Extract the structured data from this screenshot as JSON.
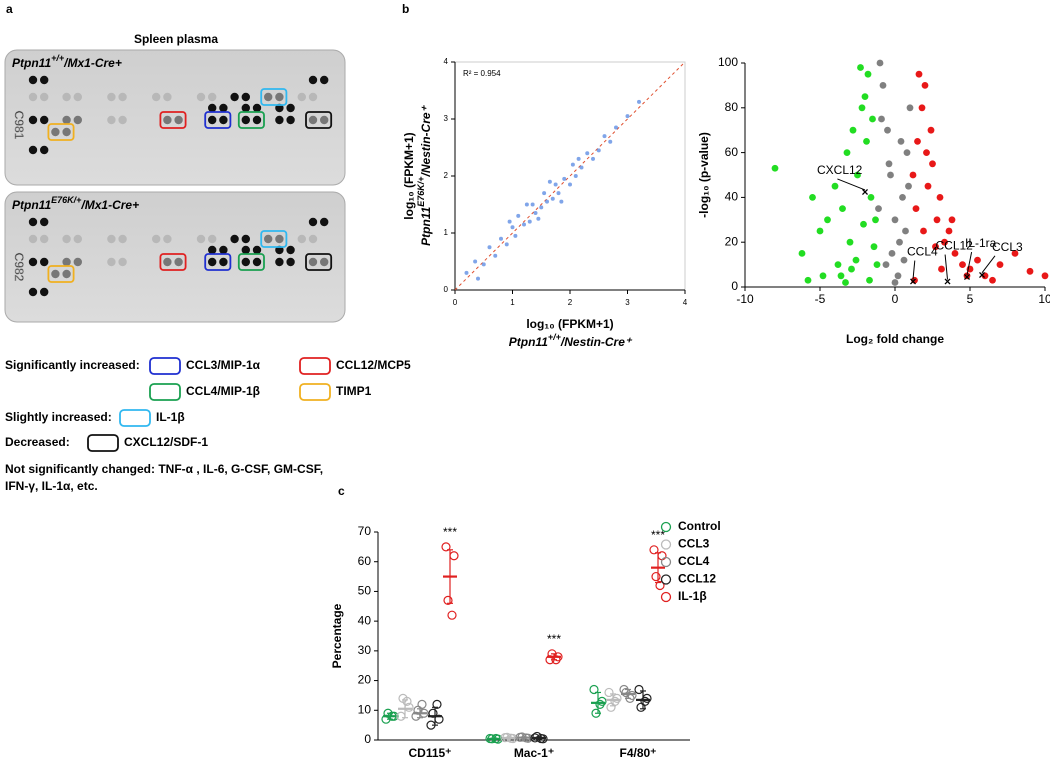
{
  "panel_a": {
    "label": "a",
    "title": "Spleen plasma",
    "membranes": [
      {
        "gene": "Ptpn11",
        "genotype": "+/+",
        "suffix": "/Mx1-Cre+",
        "code": "C981"
      },
      {
        "gene": "Ptpn11",
        "genotype": "E76K/+",
        "suffix": "/Mx1-Cre+",
        "code": "C982"
      }
    ],
    "legend": [
      {
        "heading": "Significantly increased:",
        "items": [
          {
            "label": "CCL3/MIP-1α",
            "color": "#1f2fd0"
          },
          {
            "label": "CCL12/MCP5",
            "color": "#e02020"
          },
          {
            "label": "CCL4/MIP-1β",
            "color": "#1aa050"
          },
          {
            "label": "TIMP1",
            "color": "#f0b020"
          }
        ]
      },
      {
        "heading": "Slightly increased:",
        "items": [
          {
            "label": "IL-1β",
            "color": "#30b8f0"
          }
        ]
      },
      {
        "heading": "Decreased:",
        "items": [
          {
            "label": "CXCL12/SDF-1",
            "color": "#111111"
          }
        ]
      }
    ],
    "note": [
      "Not significantly changed: TNF-α , IL-6, G-CSF, GM-CSF,",
      "IFN-γ, IL-1α, etc."
    ]
  },
  "panel_b_label": "b",
  "panel_c_label": "c",
  "chart_data": [
    {
      "type": "scatter",
      "color": "#4a7fe0",
      "xlabel": {
        "text": "log₁₀ (FPKM+1)",
        "gene": "Ptpn11",
        "genotype": "+/+",
        "suffix": "/Nestin-Cre⁺"
      },
      "ylabel": {
        "text": "log₁₀ (FPKM+1)",
        "gene": "Ptpn11",
        "genotype": "E76K/+",
        "suffix": "/Nestin-Cre⁺"
      },
      "annotation": "R² = 0.954",
      "xlim": [
        0,
        4
      ],
      "xticks": [
        0,
        1,
        2,
        3,
        4
      ],
      "ylim": [
        0,
        4
      ],
      "yticks": [
        0,
        1,
        2,
        3,
        4
      ],
      "x": [
        0.2,
        0.35,
        0.5,
        0.6,
        0.7,
        0.8,
        0.9,
        1.0,
        1.05,
        1.1,
        1.2,
        1.3,
        1.35,
        1.4,
        1.5,
        1.55,
        1.6,
        1.7,
        1.75,
        1.8,
        1.9,
        2.0,
        2.05,
        2.1,
        2.2,
        2.3,
        2.4,
        2.5,
        2.6,
        2.7,
        2.8,
        3.0,
        3.2,
        1.45,
        1.65,
        1.25,
        1.85,
        2.15,
        0.95,
        0.4
      ],
      "values": [
        0.3,
        0.5,
        0.45,
        0.75,
        0.6,
        0.9,
        0.8,
        1.1,
        0.95,
        1.3,
        1.15,
        1.2,
        1.5,
        1.35,
        1.45,
        1.7,
        1.55,
        1.6,
        1.85,
        1.7,
        1.95,
        1.85,
        2.2,
        2.0,
        2.15,
        2.4,
        2.3,
        2.45,
        2.7,
        2.6,
        2.85,
        3.05,
        3.3,
        1.25,
        1.9,
        1.5,
        1.55,
        2.3,
        1.2,
        0.2
      ]
    },
    {
      "type": "scatter",
      "xlabel": "Log₂ fold change",
      "ylabel": "-log₁₀ (p-value)",
      "xlim": [
        -10,
        10
      ],
      "xticks": [
        -10,
        -5,
        0,
        5,
        10
      ],
      "ylim": [
        0,
        100
      ],
      "yticks": [
        0,
        20,
        40,
        60,
        80,
        100
      ],
      "series": [
        {
          "color": "#22dd22",
          "x": [
            -8,
            -6.2,
            -5.5,
            -5,
            -4.5,
            -4,
            -3.8,
            -3.5,
            -3.2,
            -3,
            -2.8,
            -2.5,
            -2.3,
            -2,
            -1.8,
            -1.6,
            -1.5,
            -1.3,
            -2.2,
            -1.9,
            -3.6,
            -4.8,
            -2.6,
            -1.4,
            -2.9,
            -1.7,
            -3.3,
            -2.1,
            -1.2,
            -5.8
          ],
          "values": [
            53,
            15,
            40,
            25,
            30,
            45,
            10,
            35,
            60,
            20,
            70,
            50,
            98,
            85,
            95,
            40,
            75,
            30,
            80,
            65,
            5,
            5,
            12,
            18,
            8,
            3,
            2,
            28,
            10,
            3
          ]
        },
        {
          "color": "#808080",
          "x": [
            -1,
            -0.8,
            -0.5,
            -0.3,
            0,
            0.3,
            0.5,
            0.8,
            1,
            -0.6,
            0.2,
            -0.2,
            0.7,
            -1.1,
            0.9,
            -0.4,
            0.4,
            0,
            -0.9,
            0.6
          ],
          "values": [
            100,
            90,
            70,
            50,
            30,
            20,
            40,
            60,
            80,
            10,
            5,
            15,
            25,
            35,
            45,
            55,
            65,
            2,
            75,
            12
          ]
        },
        {
          "color": "#e81818",
          "x": [
            1.2,
            1.5,
            1.8,
            2,
            2.2,
            2.5,
            2.8,
            3,
            3.3,
            3.6,
            4,
            4.5,
            5,
            5.5,
            6,
            7,
            8,
            9,
            10,
            1.4,
            2.4,
            3.8,
            1.6,
            2.1,
            4.8,
            6.5,
            1.3,
            2.7,
            3.1,
            1.9
          ],
          "values": [
            50,
            65,
            80,
            90,
            45,
            55,
            30,
            40,
            20,
            25,
            15,
            10,
            8,
            12,
            5,
            10,
            15,
            7,
            5,
            35,
            70,
            30,
            95,
            60,
            5,
            3,
            3,
            18,
            8,
            25
          ]
        }
      ],
      "annotations": [
        {
          "label": "CXCL12",
          "x": -2,
          "y": 42
        },
        {
          "label": "CCL4",
          "x": 1.2,
          "y": 2
        },
        {
          "label": "CCL12",
          "x": 3.5,
          "y": 2
        },
        {
          "label": "IL-1ra",
          "x": 4.8,
          "y": 4
        },
        {
          "label": "CCL3",
          "x": 5.8,
          "y": 5
        }
      ]
    },
    {
      "type": "dotplot",
      "ylabel": "Percentage",
      "categories": [
        "CD115⁺",
        "Mac-1⁺",
        "F4/80⁺"
      ],
      "significance": [
        "***",
        "***",
        "***"
      ],
      "ylim": [
        0,
        70
      ],
      "yticks": [
        0,
        10,
        20,
        30,
        40,
        50,
        60,
        70
      ],
      "series": [
        {
          "name": "Control",
          "color": "#1aa050",
          "values": [
            8,
            0.4,
            12.5
          ],
          "errors": [
            1,
            0.1,
            3.5
          ],
          "points": [
            [
              7,
              8,
              9,
              8
            ],
            [
              0.5,
              0.3,
              0.4,
              0.5
            ],
            [
              17,
              13,
              9,
              12
            ]
          ]
        },
        {
          "name": "CCL3",
          "color": "#bbbbbb",
          "values": [
            10.5,
            0.7,
            13.5
          ],
          "errors": [
            3,
            0.2,
            2
          ],
          "points": [
            [
              8,
              11,
              14,
              13
            ],
            [
              0.8,
              0.5,
              0.9,
              0.6
            ],
            [
              16,
              14,
              11,
              13
            ]
          ]
        },
        {
          "name": "CCL4",
          "color": "#888888",
          "values": [
            9,
            0.8,
            15.5
          ],
          "errors": [
            1.5,
            0.2,
            1.5
          ],
          "points": [
            [
              8,
              9,
              10,
              12
            ],
            [
              0.9,
              0.6,
              1,
              0.7
            ],
            [
              17,
              15,
              16,
              14
            ]
          ]
        },
        {
          "name": "CCL12",
          "color": "#222222",
          "values": [
            8,
            0.7,
            13.5
          ],
          "errors": [
            3,
            0.3,
            3
          ],
          "points": [
            [
              5,
              7,
              9,
              12
            ],
            [
              0.7,
              0.4,
              1.2,
              0.5
            ],
            [
              17,
              14,
              11,
              13
            ]
          ]
        },
        {
          "name": "IL-1β",
          "color": "#e02020",
          "values": [
            55,
            28,
            58
          ],
          "errors": [
            9,
            1,
            5
          ],
          "points": [
            [
              65,
              62,
              47,
              42
            ],
            [
              27,
              28,
              29,
              27
            ],
            [
              64,
              62,
              55,
              52
            ]
          ]
        }
      ]
    }
  ]
}
